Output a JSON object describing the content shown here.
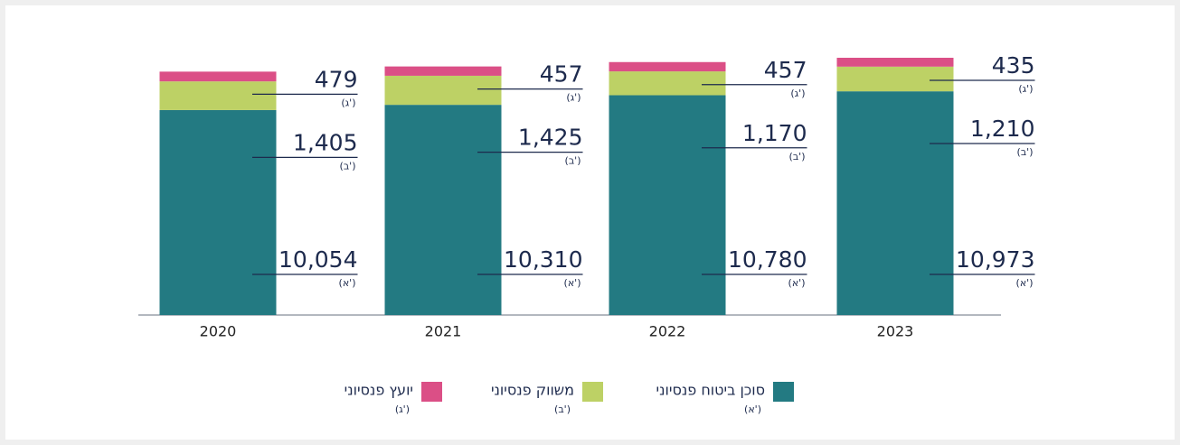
{
  "chart_data": {
    "type": "stacked_bar",
    "categories": [
      "2020",
      "2021",
      "2022",
      "2023"
    ],
    "series": [
      {
        "name": "סוכן ביטוח פנסיוני",
        "tag": "(א')",
        "color": "#237a82",
        "values": [
          10054,
          10310,
          10780,
          10973
        ],
        "value_labels": [
          "10,054",
          "10,310",
          "10,780",
          "10,973"
        ]
      },
      {
        "name": "משווק פנסיוני",
        "tag": "(ב')",
        "color": "#bdd165",
        "values": [
          1405,
          1425,
          1170,
          1210
        ],
        "value_labels": [
          "1,405",
          "1,425",
          "1,170",
          "1,210"
        ]
      },
      {
        "name": "יועץ פנסיוני",
        "tag": "(ג')",
        "color": "#db4f86",
        "values": [
          479,
          457,
          457,
          435
        ],
        "value_labels": [
          "479",
          "457",
          "457",
          "435"
        ]
      }
    ]
  }
}
